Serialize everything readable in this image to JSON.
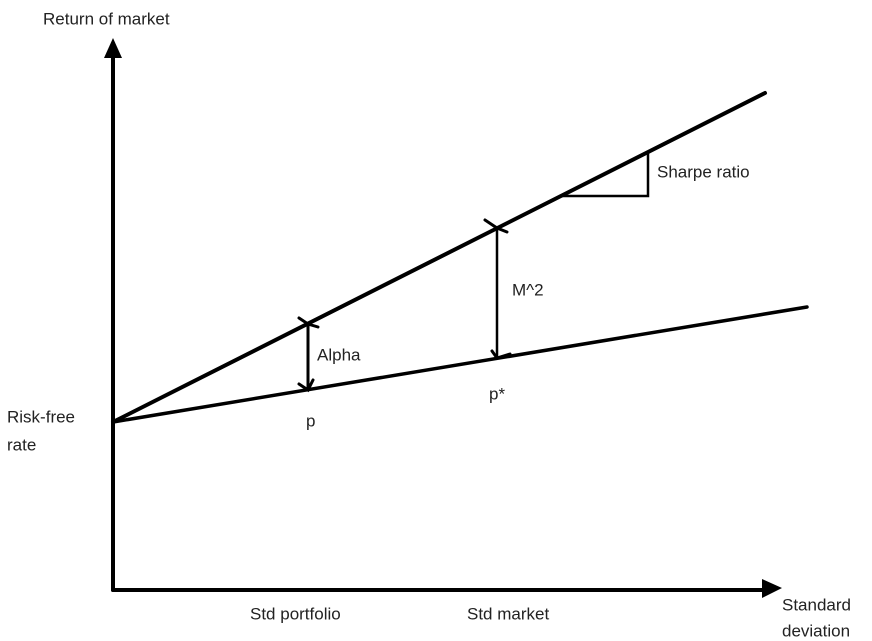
{
  "axes": {
    "y_label": "Return of market",
    "x_label_line1": "Standard",
    "x_label_line2": "deviation"
  },
  "labels": {
    "sharpe": "Sharpe ratio",
    "m2": "M^2",
    "alpha": "Alpha",
    "p": "p",
    "p_star": "p*",
    "risk_free_line1": "Risk-free",
    "risk_free_line2": "rate",
    "std_portfolio": "Std portfolio",
    "std_market": "Std market"
  }
}
